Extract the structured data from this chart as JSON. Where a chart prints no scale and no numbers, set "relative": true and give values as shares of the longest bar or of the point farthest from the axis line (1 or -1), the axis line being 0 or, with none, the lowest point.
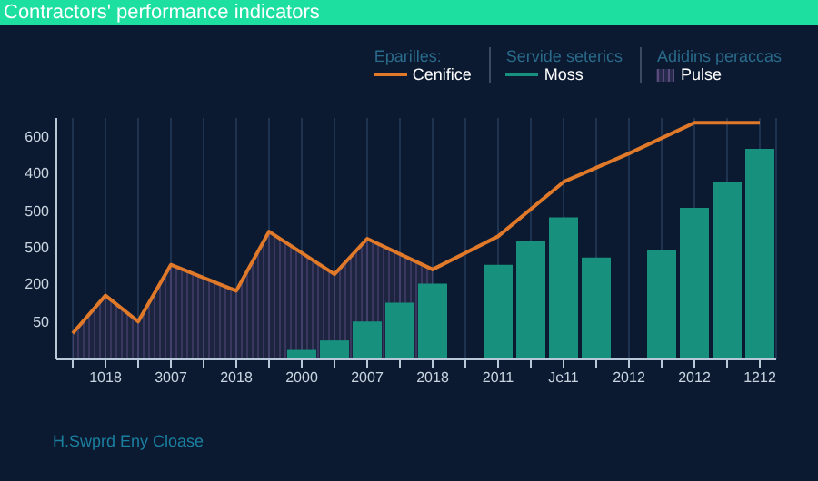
{
  "chart_data": {
    "type": "line",
    "title": "Contractors' performance indicators",
    "annotations": [
      "Eparilles:",
      "Servide seterics",
      "Adidins peraccas",
      "H.Swprd Eny Cloase",
      "50",
      "200",
      "500",
      "500",
      "400",
      "600"
    ],
    "categories": [
      null,
      "1018",
      null,
      "3007",
      null,
      "2018",
      null,
      "2000",
      null,
      "2007",
      null,
      "2018",
      null,
      "2011",
      null,
      "Je11",
      null,
      "2012",
      null,
      "2012",
      null,
      "1212"
    ],
    "relative": true,
    "grid": "x",
    "legend": "top right",
    "series": [
      {
        "name": "Pulse",
        "type": "area",
        "color": "#5a4a7e",
        "values": [
          0.11,
          0.27,
          0.16,
          0.4,
          null,
          0.29,
          0.54,
          null,
          0.36,
          0.51,
          null,
          0.38,
          null,
          null,
          null,
          null,
          null,
          null,
          null,
          null,
          null,
          null
        ]
      },
      {
        "name": "Moss",
        "type": "bar",
        "color": "#17917e",
        "values": [
          null,
          null,
          null,
          null,
          null,
          null,
          null,
          0.04,
          0.08,
          0.16,
          0.24,
          0.32,
          null,
          0.4,
          0.5,
          0.6,
          0.43,
          null,
          0.46,
          0.64,
          0.75,
          0.89
        ]
      },
      {
        "name": "Cenifice",
        "color": "#e07a2a",
        "values": [
          0.11,
          0.27,
          0.16,
          0.4,
          null,
          0.29,
          0.54,
          null,
          0.36,
          0.51,
          null,
          0.38,
          null,
          0.52,
          null,
          0.75,
          null,
          0.87,
          null,
          1,
          null,
          1
        ]
      }
    ]
  }
}
